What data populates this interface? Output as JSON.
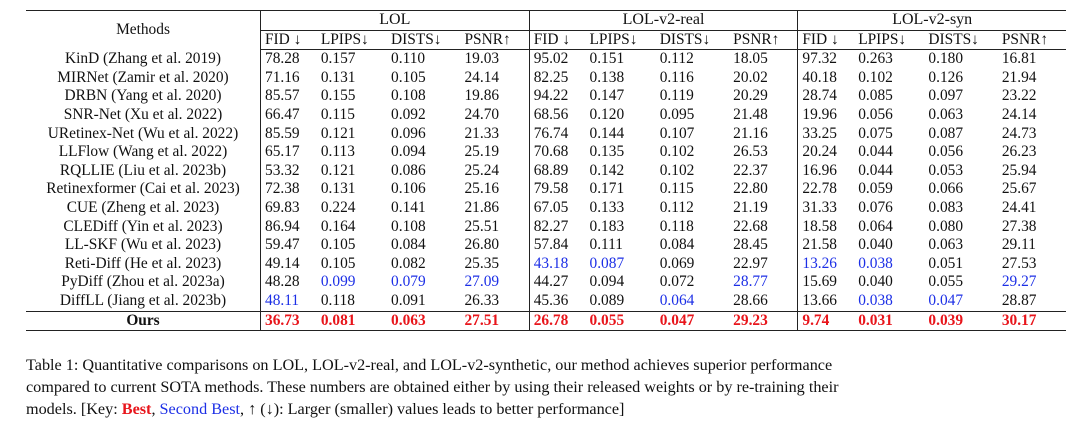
{
  "table": {
    "methods_header": "Methods",
    "groups": [
      "LOL",
      "LOL-v2-real",
      "LOL-v2-syn"
    ],
    "metrics": [
      "FID ↓",
      "LPIPS↓",
      "DISTS↓",
      "PSNR↑"
    ],
    "rows": [
      {
        "method": "KinD (Zhang et al. 2019)",
        "values": [
          "78.28",
          "0.157",
          "0.110",
          "19.03",
          "95.02",
          "0.151",
          "0.112",
          "18.05",
          "97.32",
          "0.263",
          "0.180",
          "16.81"
        ],
        "marks": [
          "",
          "",
          "",
          "",
          "",
          "",
          "",
          "",
          "",
          "",
          "",
          ""
        ]
      },
      {
        "method": "MIRNet (Zamir et al. 2020)",
        "values": [
          "71.16",
          "0.131",
          "0.105",
          "24.14",
          "82.25",
          "0.138",
          "0.116",
          "20.02",
          "40.18",
          "0.102",
          "0.126",
          "21.94"
        ],
        "marks": [
          "",
          "",
          "",
          "",
          "",
          "",
          "",
          "",
          "",
          "",
          "",
          ""
        ]
      },
      {
        "method": "DRBN (Yang et al. 2020)",
        "values": [
          "85.57",
          "0.155",
          "0.108",
          "19.86",
          "94.22",
          "0.147",
          "0.119",
          "20.29",
          "28.74",
          "0.085",
          "0.097",
          "23.22"
        ],
        "marks": [
          "",
          "",
          "",
          "",
          "",
          "",
          "",
          "",
          "",
          "",
          "",
          ""
        ]
      },
      {
        "method": "SNR-Net (Xu et al. 2022)",
        "values": [
          "66.47",
          "0.115",
          "0.092",
          "24.70",
          "68.56",
          "0.120",
          "0.095",
          "21.48",
          "19.96",
          "0.056",
          "0.063",
          "24.14"
        ],
        "marks": [
          "",
          "",
          "",
          "",
          "",
          "",
          "",
          "",
          "",
          "",
          "",
          ""
        ]
      },
      {
        "method": "URetinex-Net (Wu et al. 2022)",
        "values": [
          "85.59",
          "0.121",
          "0.096",
          "21.33",
          "76.74",
          "0.144",
          "0.107",
          "21.16",
          "33.25",
          "0.075",
          "0.087",
          "24.73"
        ],
        "marks": [
          "",
          "",
          "",
          "",
          "",
          "",
          "",
          "",
          "",
          "",
          "",
          ""
        ]
      },
      {
        "method": "LLFlow (Wang et al. 2022)",
        "values": [
          "65.17",
          "0.113",
          "0.094",
          "25.19",
          "70.68",
          "0.135",
          "0.102",
          "26.53",
          "20.24",
          "0.044",
          "0.056",
          "26.23"
        ],
        "marks": [
          "",
          "",
          "",
          "",
          "",
          "",
          "",
          "",
          "",
          "",
          "",
          ""
        ]
      },
      {
        "method": "RQLLIE (Liu et al. 2023b)",
        "values": [
          "53.32",
          "0.121",
          "0.086",
          "25.24",
          "68.89",
          "0.142",
          "0.102",
          "22.37",
          "16.96",
          "0.044",
          "0.053",
          "25.94"
        ],
        "marks": [
          "",
          "",
          "",
          "",
          "",
          "",
          "",
          "",
          "",
          "",
          "",
          ""
        ]
      },
      {
        "method": "Retinexformer (Cai et al. 2023)",
        "values": [
          "72.38",
          "0.131",
          "0.106",
          "25.16",
          "79.58",
          "0.171",
          "0.115",
          "22.80",
          "22.78",
          "0.059",
          "0.066",
          "25.67"
        ],
        "marks": [
          "",
          "",
          "",
          "",
          "",
          "",
          "",
          "",
          "",
          "",
          "",
          ""
        ]
      },
      {
        "method": "CUE (Zheng et al. 2023)",
        "values": [
          "69.83",
          "0.224",
          "0.141",
          "21.86",
          "67.05",
          "0.133",
          "0.112",
          "21.19",
          "31.33",
          "0.076",
          "0.083",
          "24.41"
        ],
        "marks": [
          "",
          "",
          "",
          "",
          "",
          "",
          "",
          "",
          "",
          "",
          "",
          ""
        ]
      },
      {
        "method": "CLEDiff (Yin et al. 2023)",
        "values": [
          "86.94",
          "0.164",
          "0.108",
          "25.51",
          "82.27",
          "0.183",
          "0.118",
          "22.68",
          "18.58",
          "0.064",
          "0.080",
          "27.38"
        ],
        "marks": [
          "",
          "",
          "",
          "",
          "",
          "",
          "",
          "",
          "",
          "",
          "",
          ""
        ]
      },
      {
        "method": "LL-SKF (Wu et al. 2023)",
        "values": [
          "59.47",
          "0.105",
          "0.084",
          "26.80",
          "57.84",
          "0.111",
          "0.084",
          "28.45",
          "21.58",
          "0.040",
          "0.063",
          "29.11"
        ],
        "marks": [
          "",
          "",
          "",
          "",
          "",
          "",
          "",
          "",
          "",
          "",
          "",
          ""
        ]
      },
      {
        "method": "Reti-Diff (He et al. 2023)",
        "values": [
          "49.14",
          "0.105",
          "0.082",
          "25.35",
          "43.18",
          "0.087",
          "0.069",
          "22.97",
          "13.26",
          "0.038",
          "0.051",
          "27.53"
        ],
        "marks": [
          "",
          "",
          "",
          "",
          "second",
          "second",
          "",
          "",
          "second",
          "second",
          "",
          ""
        ]
      },
      {
        "method": "PyDiff (Zhou et al. 2023a)",
        "values": [
          "48.28",
          "0.099",
          "0.079",
          "27.09",
          "44.27",
          "0.094",
          "0.072",
          "28.77",
          "15.69",
          "0.040",
          "0.055",
          "29.27"
        ],
        "marks": [
          "",
          "second",
          "second",
          "second",
          "",
          "",
          "",
          "second",
          "",
          "",
          "",
          "second"
        ]
      },
      {
        "method": "DiffLL (Jiang et al. 2023b)",
        "values": [
          "48.11",
          "0.118",
          "0.091",
          "26.33",
          "45.36",
          "0.089",
          "0.064",
          "28.66",
          "13.66",
          "0.038",
          "0.047",
          "28.87"
        ],
        "marks": [
          "second",
          "",
          "",
          "",
          "",
          "",
          "second",
          "",
          "",
          "second",
          "second",
          ""
        ]
      }
    ],
    "ours": {
      "method": "Ours",
      "values": [
        "36.73",
        "0.081",
        "0.063",
        "27.51",
        "26.78",
        "0.055",
        "0.047",
        "29.23",
        "9.74",
        "0.031",
        "0.039",
        "30.17"
      ],
      "marks": [
        "best",
        "best",
        "best",
        "best",
        "best",
        "best",
        "best",
        "best",
        "best",
        "best",
        "best",
        "best"
      ]
    }
  },
  "caption": {
    "line1": "Table 1: Quantitative comparisons on LOL, LOL-v2-real, and LOL-v2-synthetic, our method achieves superior performance",
    "line2": "compared to current SOTA methods. These numbers are obtained either by using their released weights or by re-training their",
    "line3_prefix": "models. [Key: ",
    "key_best": "Best",
    "key_sep": ", ",
    "key_second": "Second Best",
    "line3_suffix": ", ↑ (↓): Larger (smaller) values leads to better performance]"
  },
  "colors": {
    "best": "#e8151b",
    "second": "#1c2fe6"
  }
}
